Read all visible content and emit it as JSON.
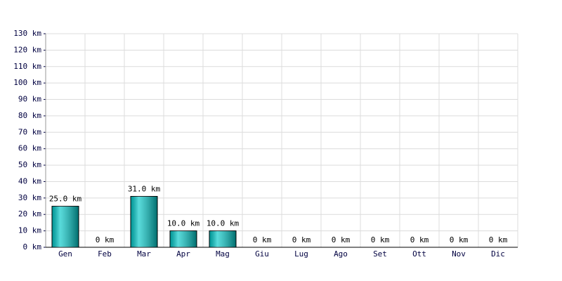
{
  "chart_data": {
    "type": "bar",
    "categories": [
      "Gen",
      "Feb",
      "Mar",
      "Apr",
      "Mag",
      "Giu",
      "Lug",
      "Ago",
      "Set",
      "Ott",
      "Nov",
      "Dic"
    ],
    "values": [
      25,
      0,
      31,
      10,
      10,
      0,
      0,
      0,
      0,
      0,
      0,
      0
    ],
    "value_labels": [
      "25.0 km",
      "0 km",
      "31.0 km",
      "10.0 km",
      "10.0 km",
      "0 km",
      "0 km",
      "0 km",
      "0 km",
      "0 km",
      "0 km",
      "0 km"
    ],
    "color": "#00c8c8",
    "ylim": [
      0,
      130
    ],
    "yticks": [
      {
        "value": 0,
        "label": "0 km"
      },
      {
        "value": 10,
        "label": "10 km"
      },
      {
        "value": 20,
        "label": "20 km"
      },
      {
        "value": 30,
        "label": "30 km"
      },
      {
        "value": 40,
        "label": "40 km"
      },
      {
        "value": 50,
        "label": "50 km"
      },
      {
        "value": 60,
        "label": "60 km"
      },
      {
        "value": 70,
        "label": "70 km"
      },
      {
        "value": 80,
        "label": "80 km"
      },
      {
        "value": 90,
        "label": "90 km"
      },
      {
        "value": 100,
        "label": "100 km"
      },
      {
        "value": 110,
        "label": "110 km"
      },
      {
        "value": 120,
        "label": "120 km"
      },
      {
        "value": 130,
        "label": "130 km"
      }
    ],
    "grid": true
  }
}
